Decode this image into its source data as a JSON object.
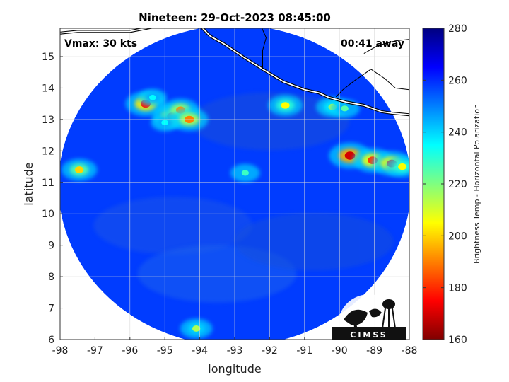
{
  "chart_data": {
    "type": "heatmap",
    "title": "Nineteen: 29-Oct-2023 08:45:00",
    "xlabel": "longitude",
    "ylabel": "latitude",
    "xlim": [
      -98,
      -88
    ],
    "ylim": [
      6,
      15.9
    ],
    "xticks": [
      "-98",
      "-97",
      "-96",
      "-95",
      "-94",
      "-93",
      "-92",
      "-91",
      "-90",
      "-89",
      "-88"
    ],
    "yticks": [
      "6",
      "7",
      "8",
      "9",
      "10",
      "11",
      "12",
      "13",
      "14",
      "15"
    ],
    "grid": true,
    "swath": {
      "center_lon": -93,
      "center_lat": 10.9,
      "radius_lon": 5.05,
      "radius_lat": 5.1
    },
    "background_tb": 258,
    "colorbar": {
      "label": "Brightness Temp - Horizontal Polarization",
      "range": [
        160,
        280
      ],
      "ticks": [
        "160",
        "180",
        "200",
        "220",
        "240",
        "260",
        "280"
      ],
      "colormap": "jet"
    },
    "features": [
      {
        "lon": -95.55,
        "lat": 13.5,
        "tb": 178
      },
      {
        "lon": -95.35,
        "lat": 13.7,
        "tb": 235
      },
      {
        "lon": -94.8,
        "lat": 13.1,
        "tb": 185
      },
      {
        "lon": -94.55,
        "lat": 13.3,
        "tb": 192
      },
      {
        "lon": -94.3,
        "lat": 13.0,
        "tb": 190
      },
      {
        "lon": -95.0,
        "lat": 12.9,
        "tb": 235
      },
      {
        "lon": -91.55,
        "lat": 13.45,
        "tb": 205
      },
      {
        "lon": -90.2,
        "lat": 13.4,
        "tb": 212
      },
      {
        "lon": -89.85,
        "lat": 13.35,
        "tb": 225
      },
      {
        "lon": -89.7,
        "lat": 11.85,
        "tb": 170
      },
      {
        "lon": -89.05,
        "lat": 11.7,
        "tb": 182
      },
      {
        "lon": -88.5,
        "lat": 11.6,
        "tb": 180
      },
      {
        "lon": -88.2,
        "lat": 11.5,
        "tb": 205
      },
      {
        "lon": -97.45,
        "lat": 11.4,
        "tb": 200
      },
      {
        "lon": -92.7,
        "lat": 11.3,
        "tb": 228
      },
      {
        "lon": -94.1,
        "lat": 6.35,
        "tb": 215
      }
    ],
    "coastline": [
      {
        "lon": -98.0,
        "lat": 15.75
      },
      {
        "lon": -97.5,
        "lat": 15.8
      },
      {
        "lon": -96.8,
        "lat": 15.8
      },
      {
        "lon": -96.0,
        "lat": 15.8
      },
      {
        "lon": -95.3,
        "lat": 15.95
      },
      {
        "lon": -94.6,
        "lat": 16.1
      },
      {
        "lon": -94.05,
        "lat": 16.05
      },
      {
        "lon": -93.7,
        "lat": 15.65
      },
      {
        "lon": -93.3,
        "lat": 15.4
      },
      {
        "lon": -92.7,
        "lat": 14.95
      },
      {
        "lon": -92.2,
        "lat": 14.6
      },
      {
        "lon": -91.6,
        "lat": 14.2
      },
      {
        "lon": -91.0,
        "lat": 13.95
      },
      {
        "lon": -90.6,
        "lat": 13.85
      },
      {
        "lon": -90.3,
        "lat": 13.7
      },
      {
        "lon": -89.8,
        "lat": 13.55
      },
      {
        "lon": -89.3,
        "lat": 13.45
      },
      {
        "lon": -88.8,
        "lat": 13.25
      },
      {
        "lon": -88.5,
        "lat": 13.2
      },
      {
        "lon": -88.0,
        "lat": 13.15
      }
    ],
    "borders": [
      [
        {
          "lon": -92.3,
          "lat": 16.1
        },
        {
          "lon": -92.1,
          "lat": 15.6
        },
        {
          "lon": -92.2,
          "lat": 15.2
        },
        {
          "lon": -92.2,
          "lat": 14.6
        }
      ],
      [
        {
          "lon": -90.1,
          "lat": 13.72
        },
        {
          "lon": -89.9,
          "lat": 13.95
        },
        {
          "lon": -89.55,
          "lat": 14.25
        },
        {
          "lon": -89.35,
          "lat": 14.4
        },
        {
          "lon": -89.1,
          "lat": 14.6
        }
      ],
      [
        {
          "lon": -89.1,
          "lat": 14.6
        },
        {
          "lon": -88.7,
          "lat": 14.3
        },
        {
          "lon": -88.4,
          "lat": 14.0
        },
        {
          "lon": -88.0,
          "lat": 13.95
        }
      ],
      [
        {
          "lon": -89.3,
          "lat": 15.1
        },
        {
          "lon": -88.9,
          "lat": 15.35
        },
        {
          "lon": -88.4,
          "lat": 15.5
        },
        {
          "lon": -88.0,
          "lat": 15.55
        }
      ]
    ]
  },
  "annotations": {
    "vmax": "Vmax: 30 kts",
    "time_away": "00:41 away"
  },
  "logo": {
    "text": "CIMSS"
  }
}
